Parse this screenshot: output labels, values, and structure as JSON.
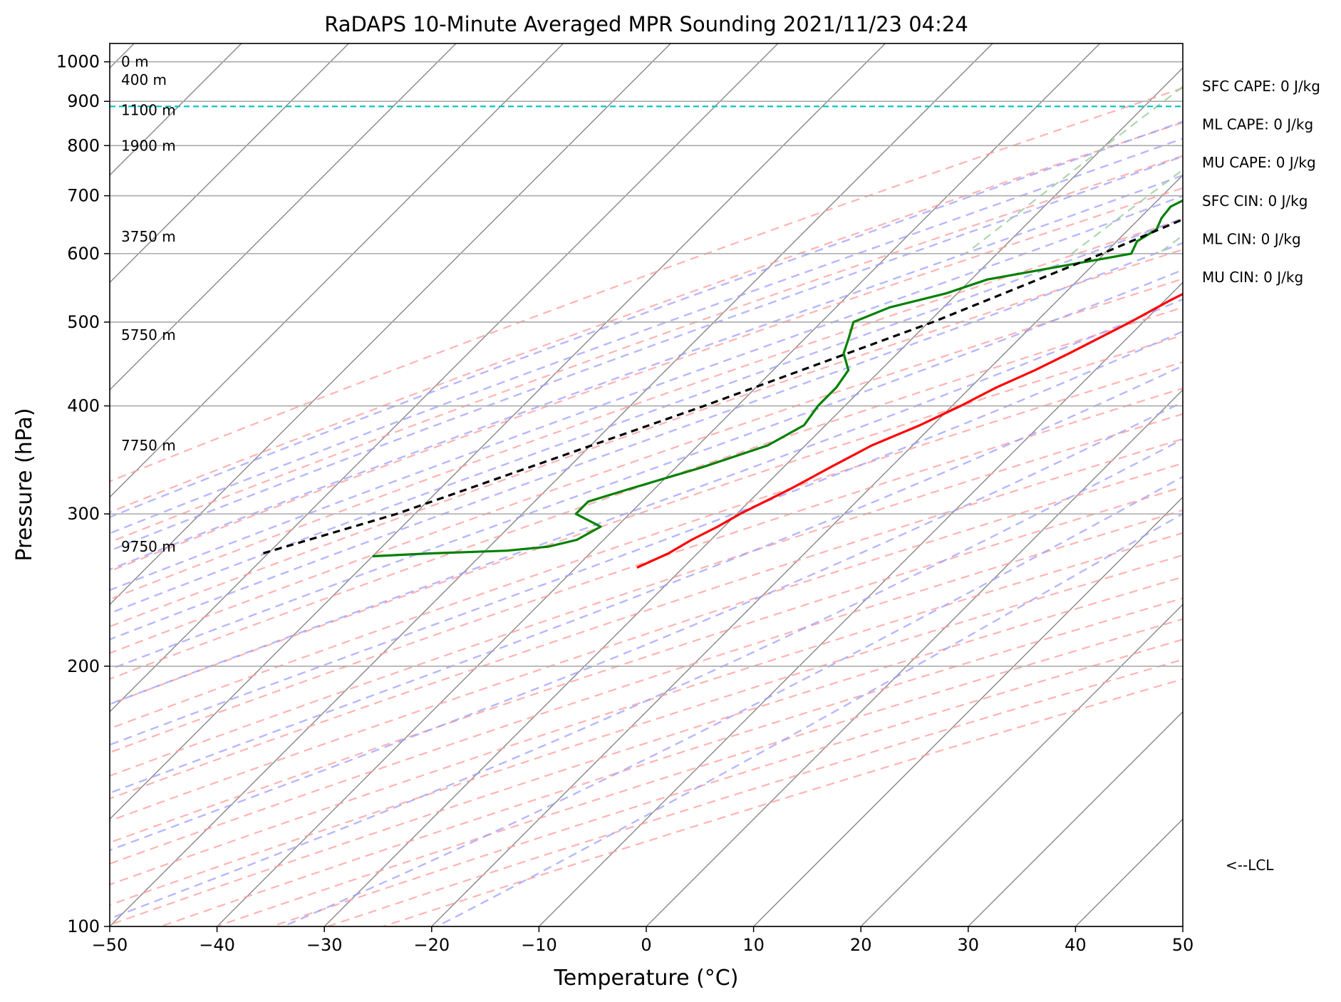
{
  "chart_data": {
    "type": "line",
    "title": "RaDAPS 10-Minute Averaged MPR Sounding 2021/11/23 04:24",
    "xlabel": "Temperature (°C)",
    "ylabel": "Pressure (hPa)",
    "xlim": [
      -50,
      50
    ],
    "ylim": [
      1050,
      100
    ],
    "y_scale": "log",
    "grid": true,
    "x_ticks": [
      -50,
      -40,
      -30,
      -20,
      -10,
      0,
      10,
      20,
      30,
      40,
      50
    ],
    "x_tick_labels": [
      "−50",
      "−40",
      "−30",
      "−20",
      "−10",
      "0",
      "10",
      "20",
      "30",
      "40",
      "50"
    ],
    "y_ticks": [
      100,
      200,
      300,
      400,
      500,
      600,
      700,
      800,
      900,
      1000
    ],
    "y_tick_labels": [
      "100",
      "200",
      "300",
      "400",
      "500",
      "600",
      "700",
      "800",
      "900",
      "1000"
    ],
    "skew_deg": 45,
    "series": [
      {
        "role": "temperature",
        "color": "#ff0000",
        "points": [
          [
            1000,
            3.3
          ],
          [
            990,
            2.8
          ],
          [
            970,
            2.9
          ],
          [
            950,
            2.8
          ],
          [
            925,
            2.6
          ],
          [
            900,
            2.1
          ],
          [
            880,
            1.5
          ],
          [
            860,
            0.5
          ],
          [
            840,
            -0.3
          ],
          [
            820,
            -0.5
          ],
          [
            800,
            -0.8
          ],
          [
            780,
            -0.8
          ],
          [
            750,
            -1.1
          ],
          [
            720,
            -1.8
          ],
          [
            690,
            -2.6
          ],
          [
            660,
            -3.8
          ],
          [
            630,
            -4.9
          ],
          [
            600,
            -5.9
          ],
          [
            580,
            -6.6
          ],
          [
            560,
            -7.6
          ],
          [
            530,
            -9.5
          ],
          [
            500,
            -11.2
          ],
          [
            460,
            -14.0
          ],
          [
            440,
            -15.6
          ],
          [
            420,
            -17.6
          ],
          [
            400,
            -19.2
          ],
          [
            380,
            -21.2
          ],
          [
            360,
            -23.8
          ],
          [
            340,
            -25.6
          ],
          [
            320,
            -27.4
          ],
          [
            300,
            -29.7
          ],
          [
            290,
            -30.6
          ],
          [
            280,
            -31.8
          ],
          [
            270,
            -32.7
          ],
          [
            260,
            -34.3
          ]
        ]
      },
      {
        "role": "dewpoint",
        "color": "#008000",
        "points": [
          [
            1000,
            -4.5
          ],
          [
            995,
            -10
          ],
          [
            985,
            -14
          ],
          [
            975,
            -17
          ],
          [
            960,
            -17.5
          ],
          [
            945,
            -15
          ],
          [
            935,
            -12
          ],
          [
            915,
            -10.5
          ],
          [
            900,
            -10.5
          ],
          [
            885,
            -10.5
          ],
          [
            870,
            -11
          ],
          [
            855,
            -11.5
          ],
          [
            840,
            -12.8
          ],
          [
            825,
            -13.2
          ],
          [
            815,
            -12
          ],
          [
            800,
            -10.5
          ],
          [
            780,
            -11.5
          ],
          [
            765,
            -12.5
          ],
          [
            750,
            -13.5
          ],
          [
            735,
            -14.5
          ],
          [
            720,
            -15.5
          ],
          [
            700,
            -17.2
          ],
          [
            680,
            -18.2
          ],
          [
            660,
            -18.0
          ],
          [
            640,
            -17.4
          ],
          [
            620,
            -18.1
          ],
          [
            600,
            -17.5
          ],
          [
            560,
            -28.5
          ],
          [
            540,
            -31.0
          ],
          [
            520,
            -35.0
          ],
          [
            500,
            -37.0
          ],
          [
            480,
            -36.0
          ],
          [
            460,
            -35.0
          ],
          [
            440,
            -33.0
          ],
          [
            420,
            -32.5
          ],
          [
            400,
            -32.5
          ],
          [
            380,
            -32.0
          ],
          [
            360,
            -33.5
          ],
          [
            340,
            -37.5
          ],
          [
            320,
            -42.5
          ],
          [
            310,
            -45.0
          ],
          [
            300,
            -45.0
          ],
          [
            290,
            -41.5
          ],
          [
            280,
            -42.5
          ],
          [
            275,
            -44.5
          ],
          [
            272,
            -48
          ],
          [
            270,
            -55
          ],
          [
            268,
            -60
          ]
        ]
      },
      {
        "role": "parcel",
        "color": "#000000",
        "style": "dashed",
        "points": [
          [
            1000,
            3.4
          ],
          [
            890,
            -2.6
          ],
          [
            800,
            -7.0
          ],
          [
            700,
            -12.9
          ],
          [
            600,
            -20.2
          ],
          [
            500,
            -29.6
          ],
          [
            400,
            -43.1
          ],
          [
            300,
            -61.7
          ],
          [
            270,
            -70.5
          ]
        ]
      }
    ],
    "lcl": {
      "pressure": 888,
      "label": "<--LCL",
      "color": "#00c0c0"
    },
    "height_labels": [
      {
        "pressure": 1000,
        "label": "0 m"
      },
      {
        "pressure": 953,
        "label": "400 m"
      },
      {
        "pressure": 879,
        "label": "1100 m"
      },
      {
        "pressure": 800,
        "label": "1900 m"
      },
      {
        "pressure": 628,
        "label": "3750 m"
      },
      {
        "pressure": 483,
        "label": "5750 m"
      },
      {
        "pressure": 360,
        "label": "7750 m"
      },
      {
        "pressure": 275,
        "label": "9750 m"
      }
    ],
    "indices": [
      {
        "label": "SFC CAPE: 0 J/kg"
      },
      {
        "label": "ML CAPE: 0 J/kg"
      },
      {
        "label": "MU CAPE: 0 J/kg"
      },
      {
        "label": "SFC CIN: 0 J/kg"
      },
      {
        "label": "ML CIN: 0 J/kg"
      },
      {
        "label": "MU CIN: 0 J/kg"
      }
    ],
    "background_lines": {
      "isotherm_color": "#888888",
      "dry_adiabat_color": "#ff9999",
      "moist_adiabat_color": "#9999ff",
      "mixing_ratio_color": "#99cc99"
    }
  }
}
